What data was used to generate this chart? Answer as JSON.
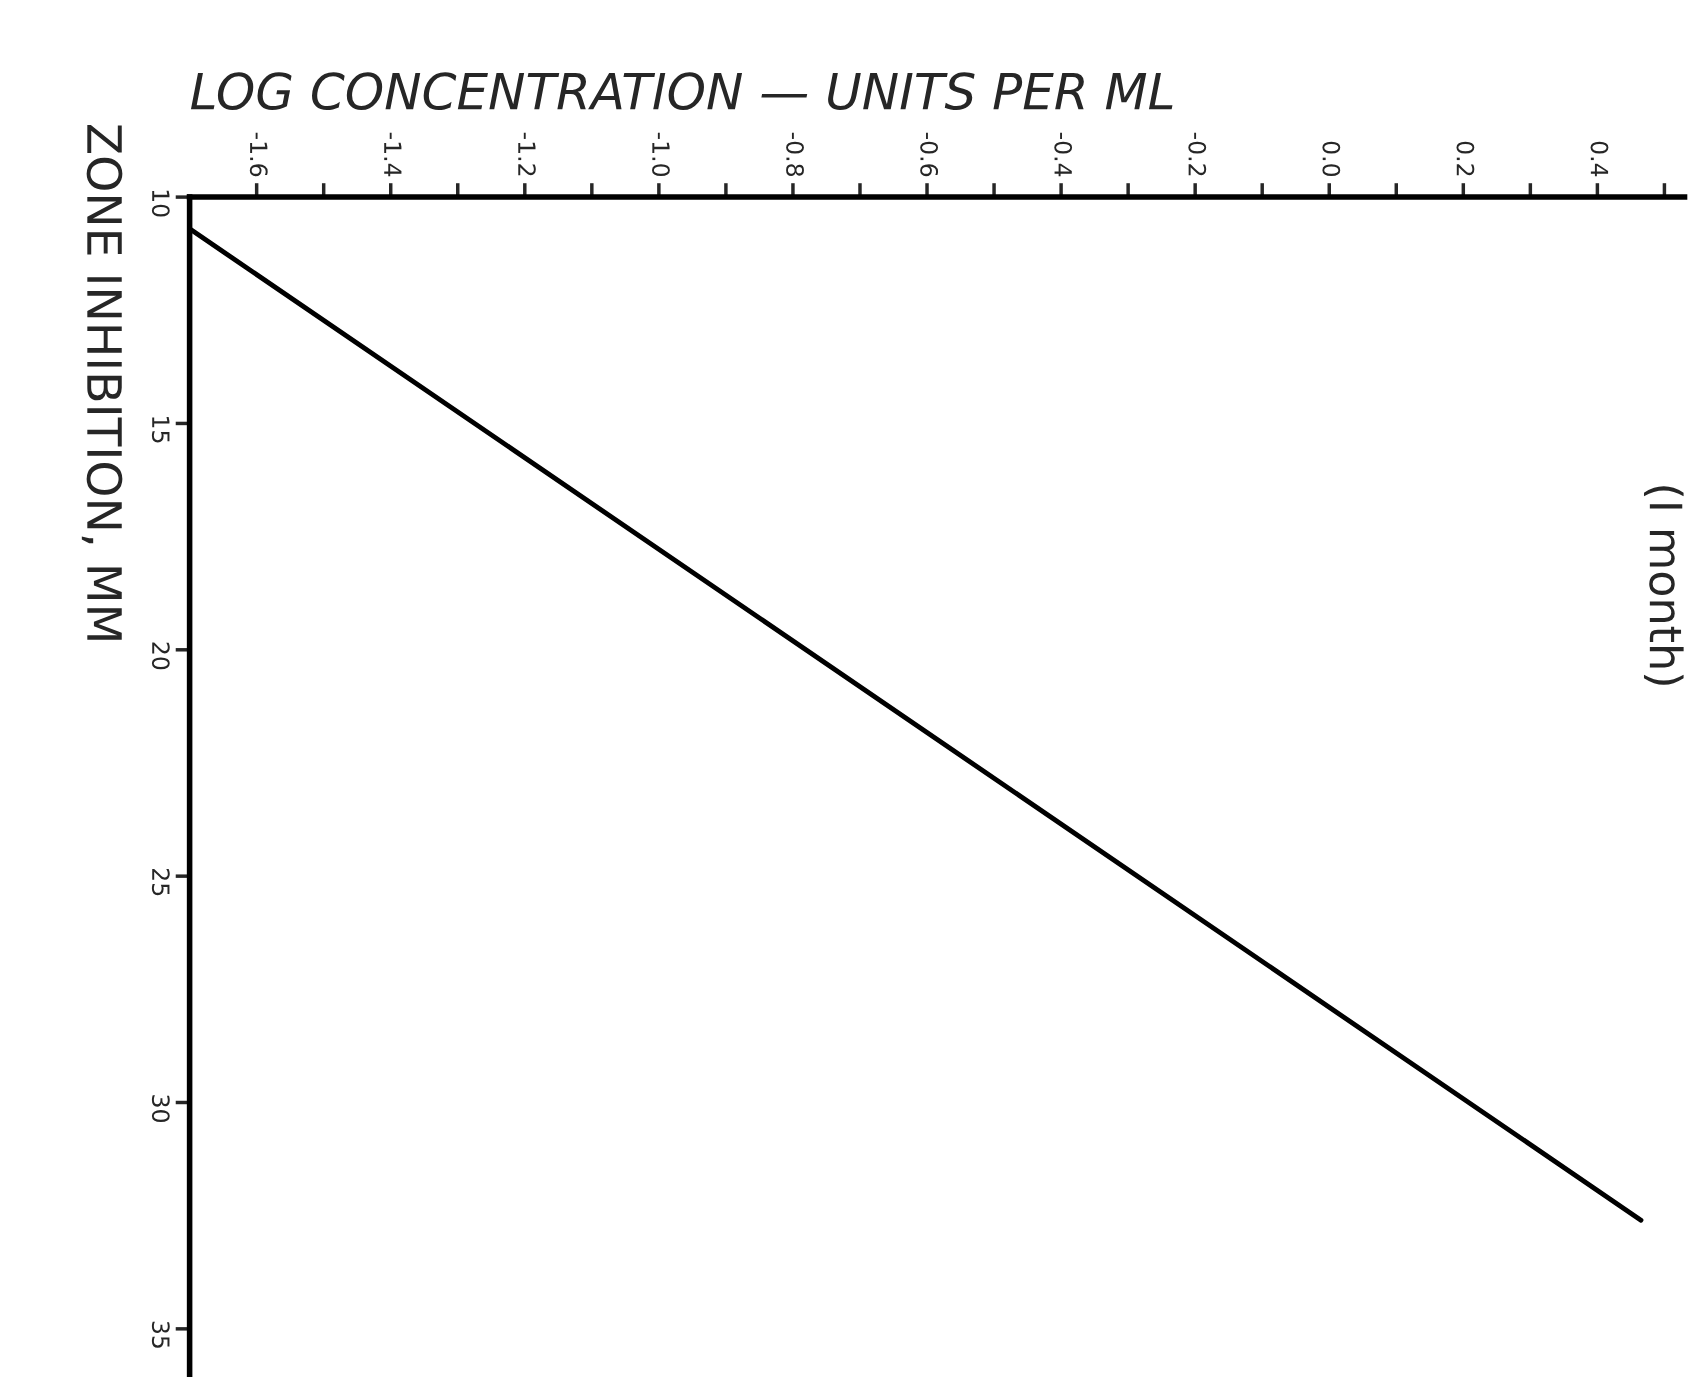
{
  "chart_data": {
    "type": "line",
    "xlabel": "LOG CONCENTRATION — UNITS PER ML",
    "ylabel": "ZONE INHIBITION, MM",
    "x": [
      -1.7,
      0.465
    ],
    "series": [
      {
        "color": "#000000",
        "values": [
          10.7,
          32.6
        ]
      }
    ],
    "xlim": [
      -1.7,
      0.53
    ],
    "ylim": [
      36,
      10
    ],
    "xticks": [
      -1.6,
      {
        "value": -1.5,
        "label": null
      },
      -1.4,
      {
        "value": -1.3,
        "label": null
      },
      -1.2,
      {
        "value": -1.1,
        "label": null
      },
      {
        "value": -1.0,
        "label": "-1.0"
      },
      {
        "value": -0.9,
        "label": null
      },
      -0.8,
      {
        "value": -0.7,
        "label": null
      },
      -0.6,
      {
        "value": -0.5,
        "label": null
      },
      -0.4,
      {
        "value": -0.3,
        "label": null
      },
      -0.2,
      {
        "value": -0.1,
        "label": null
      },
      {
        "value": 0.0,
        "label": "0.0"
      },
      {
        "value": 0.1,
        "label": null
      },
      0.2,
      {
        "value": 0.3,
        "label": null
      },
      0.4,
      {
        "value": 0.5,
        "label": null
      }
    ],
    "yticks": [
      10,
      15,
      20,
      25,
      30,
      35
    ],
    "annotations": [
      "(I month)"
    ],
    "grid": false,
    "legend": false,
    "marker": "none",
    "line_style": "solid"
  }
}
